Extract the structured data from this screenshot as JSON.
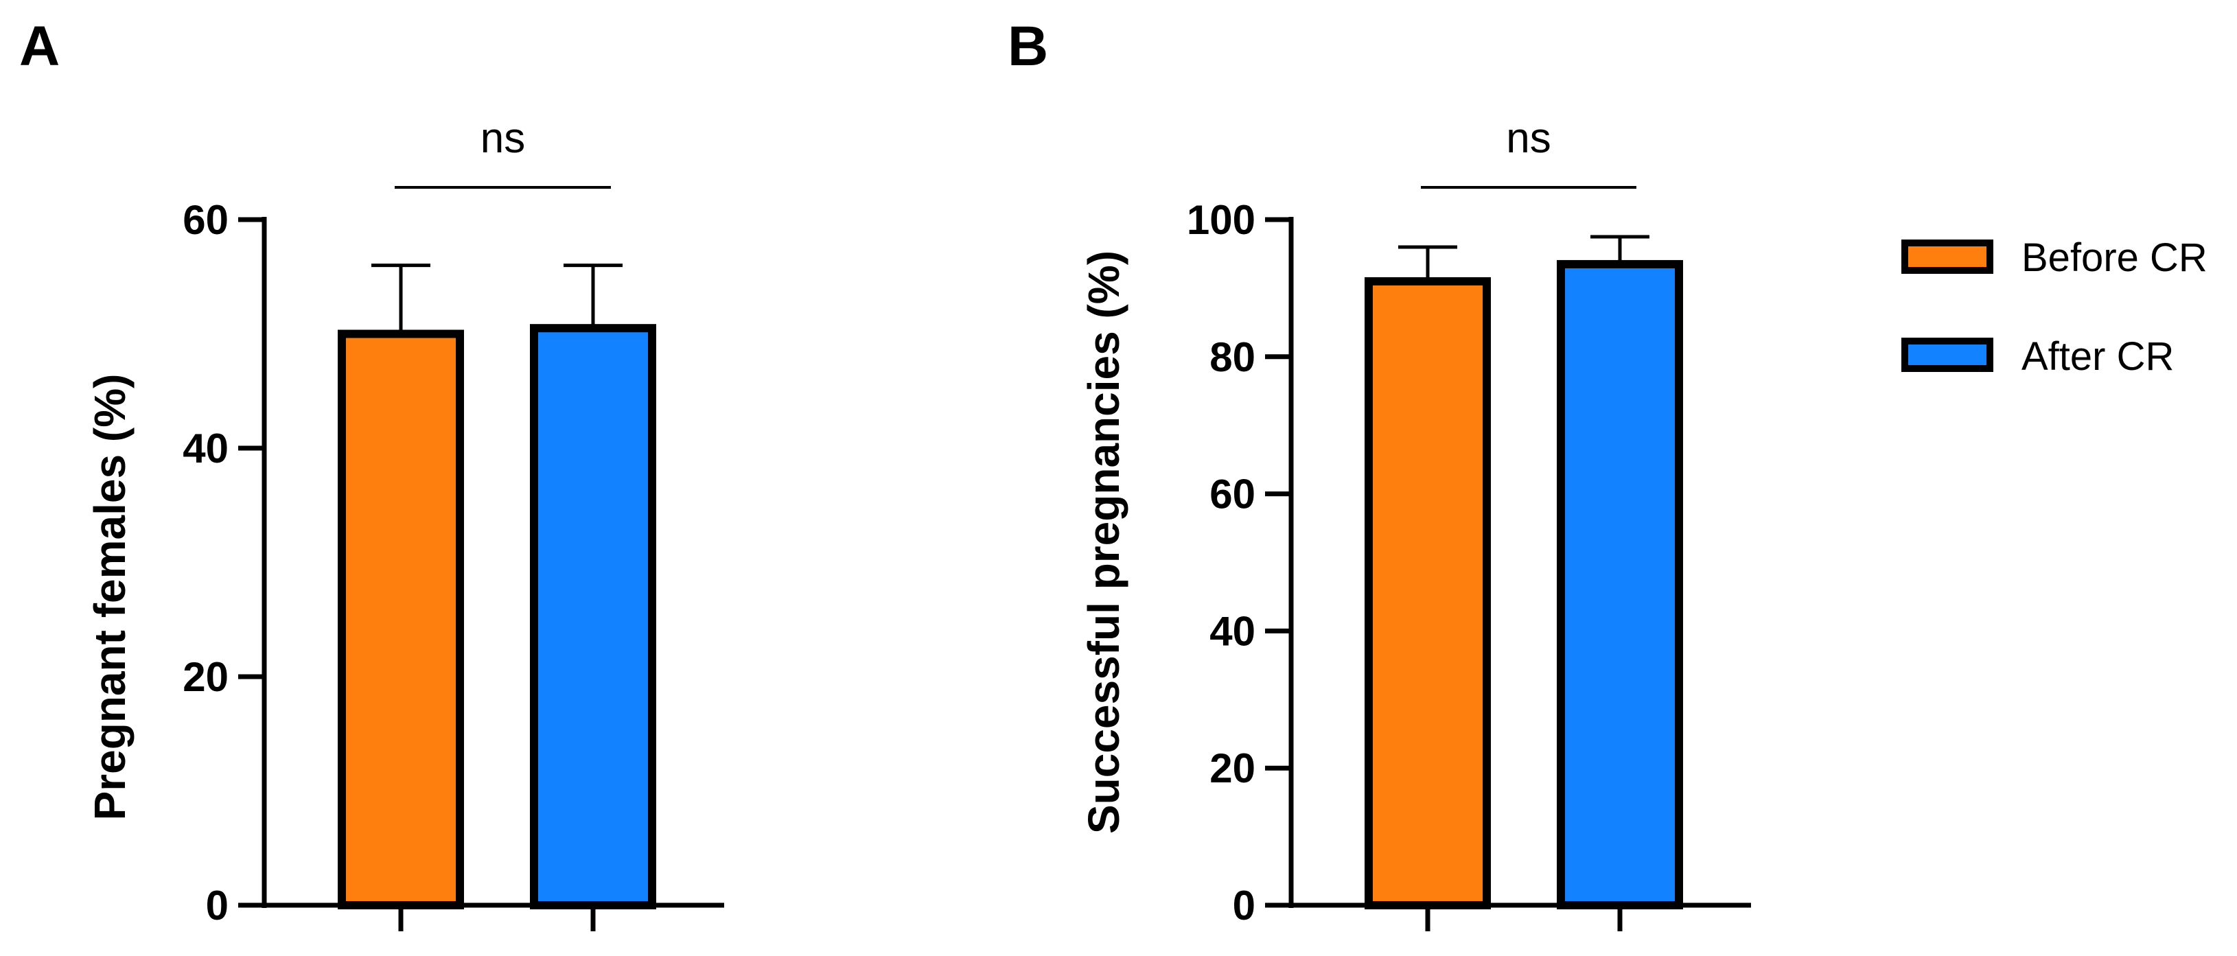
{
  "legend": {
    "items": [
      {
        "label": "Before CR",
        "color": "#FF7F0E"
      },
      {
        "label": "After CR",
        "color": "#1282FF"
      }
    ]
  },
  "chart_data": [
    {
      "type": "bar",
      "panel": "A",
      "ylabel": "Pregnant females (%)",
      "xlabel": "",
      "ylim": [
        0,
        60
      ],
      "yticks": [
        0,
        20,
        40,
        60
      ],
      "categories": [
        "Before CR",
        "After CR"
      ],
      "values": [
        50,
        50.5
      ],
      "error_upper": [
        56,
        56
      ],
      "colors": [
        "#FF7F0E",
        "#1282FF"
      ],
      "significance": "ns"
    },
    {
      "type": "bar",
      "panel": "B",
      "ylabel": "Successful pregnancies (%)",
      "xlabel": "",
      "ylim": [
        0,
        100
      ],
      "yticks": [
        0,
        20,
        40,
        60,
        80,
        100
      ],
      "categories": [
        "Before CR",
        "After CR"
      ],
      "values": [
        91,
        93.5
      ],
      "error_upper": [
        96,
        97.5
      ],
      "colors": [
        "#FF7F0E",
        "#1282FF"
      ],
      "significance": "ns"
    }
  ]
}
